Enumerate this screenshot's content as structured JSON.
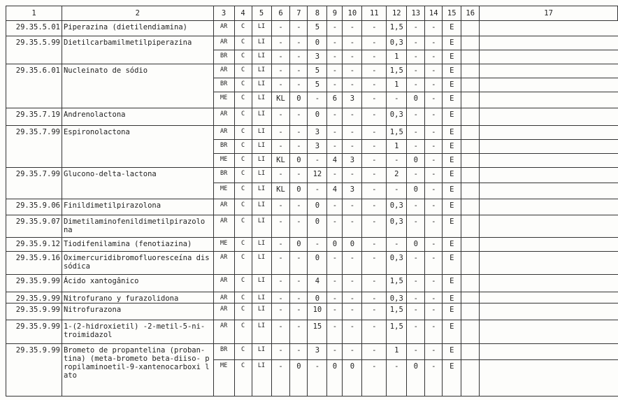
{
  "headers": [
    "1",
    "2",
    "3",
    "4",
    "5",
    "6",
    "7",
    "8",
    "9",
    "10",
    "11",
    "12",
    "13",
    "14",
    "15",
    "16",
    "17"
  ],
  "products": [
    {
      "code": "29.35.5.01",
      "name": "Piperazina (dietilendiamina)",
      "rows": [
        [
          "AR",
          "C",
          "LI",
          "-",
          "-",
          "5",
          "-",
          "-",
          "-",
          "1,5",
          "-",
          "-",
          "E"
        ]
      ]
    },
    {
      "code": "29.35.5.99",
      "name": "Dietilcarbamilmetilpiperazina",
      "rows": [
        [
          "AR",
          "C",
          "LI",
          "-",
          "-",
          "0",
          "-",
          "-",
          "-",
          "0,3",
          "-",
          "-",
          "E"
        ],
        [
          "BR",
          "C",
          "LI",
          "-",
          "-",
          "3",
          "-",
          "-",
          "-",
          "1",
          "-",
          "-",
          "E"
        ]
      ]
    },
    {
      "code": "29.35.6.01",
      "name": "Nucleinato de sódio",
      "rows": [
        [
          "AR",
          "C",
          "LI",
          "-",
          "-",
          "5",
          "-",
          "-",
          "-",
          "1,5",
          "-",
          "-",
          "E"
        ],
        [
          "BR",
          "C",
          "LI",
          "-",
          "-",
          "5",
          "-",
          "-",
          "-",
          "1",
          "-",
          "-",
          "E"
        ],
        [
          "ME",
          "C",
          "LI",
          "KL",
          "0",
          "-",
          "6",
          "3",
          "-",
          "-",
          "0",
          "-",
          "E"
        ]
      ]
    },
    {
      "code": "29.35.7.19",
      "name": "Andrenolactona",
      "rows": [
        [
          "AR",
          "C",
          "LI",
          "-",
          "-",
          "0",
          "-",
          "-",
          "-",
          "0,3",
          "-",
          "-",
          "E"
        ]
      ]
    },
    {
      "code": "29.35.7.99",
      "name": "Espironolactona",
      "rows": [
        [
          "AR",
          "C",
          "LI",
          "-",
          "-",
          "3",
          "-",
          "-",
          "-",
          "1,5",
          "-",
          "-",
          "E"
        ],
        [
          "BR",
          "C",
          "LI",
          "-",
          "-",
          "3",
          "-",
          "-",
          "-",
          "1",
          "-",
          "-",
          "E"
        ],
        [
          "ME",
          "C",
          "LI",
          "KL",
          "0",
          "-",
          "4",
          "3",
          "-",
          "-",
          "0",
          "-",
          "E"
        ]
      ]
    },
    {
      "code": "29.35.7.99",
      "name": "Glucono-delta-lactona",
      "rows": [
        [
          "BR",
          "C",
          "LI",
          "-",
          "-",
          "12",
          "-",
          "-",
          "-",
          "2",
          "-",
          "-",
          "E"
        ],
        [
          "ME",
          "C",
          "LI",
          "KL",
          "0",
          "-",
          "4",
          "3",
          "-",
          "-",
          "0",
          "-",
          "E"
        ]
      ]
    },
    {
      "code": "29.35.9.06",
      "name": "Finildimetilpirazolona",
      "rows": [
        [
          "AR",
          "C",
          "LI",
          "-",
          "-",
          "0",
          "-",
          "-",
          "-",
          "0,3",
          "-",
          "-",
          "E"
        ]
      ]
    },
    {
      "code": "29.35.9.07",
      "name": "Dimetilaminofenildimetilpirazolo na",
      "rows": [
        [
          "AR",
          "C",
          "LI",
          "-",
          "-",
          "0",
          "-",
          "-",
          "-",
          "0,3",
          "-",
          "-",
          "E"
        ]
      ]
    },
    {
      "code": "29.35.9.12",
      "name": "Tiodifenilamina (fenotiazina)",
      "rows": [
        [
          "ME",
          "C",
          "LI",
          "-",
          "0",
          "-",
          "0",
          "0",
          "-",
          "-",
          "0",
          "-",
          "E"
        ]
      ]
    },
    {
      "code": "29.35.9.16",
      "name": "Oximercuridibromofluoresceína dissódica",
      "rows": [
        [
          "AR",
          "C",
          "LI",
          "-",
          "-",
          "0",
          "-",
          "-",
          "-",
          "0,3",
          "-",
          "-",
          "E"
        ]
      ]
    },
    {
      "code": "29.35.9.99",
      "name": "Ácido xantogânico",
      "rows": [
        [
          "AR",
          "C",
          "LI",
          "-",
          "-",
          "4",
          "-",
          "-",
          "-",
          "1,5",
          "-",
          "-",
          "E"
        ]
      ]
    },
    {
      "code": "29.35.9.99",
      "name": "Nitrofurano y furazolidona",
      "rows": [
        [
          "AR",
          "C",
          "LI",
          "-",
          "-",
          "0",
          "-",
          "-",
          "-",
          "0,3",
          "-",
          "-",
          "E"
        ]
      ]
    },
    {
      "code": "29.35.9.99",
      "name": "Nitrofurazona",
      "rows": [
        [
          "AR",
          "C",
          "LI",
          "-",
          "-",
          "10",
          "-",
          "-",
          "-",
          "1,5",
          "-",
          "-",
          "E"
        ]
      ]
    },
    {
      "code": "29.35.9.99",
      "name": "1-(2-hidroxietil) -2-metil-5-ni- troimidazol",
      "rows": [
        [
          "AR",
          "C",
          "LI",
          "-",
          "-",
          "15",
          "-",
          "-",
          "-",
          "1,5",
          "-",
          "-",
          "E"
        ]
      ]
    },
    {
      "code": "29.35.9.99",
      "name": "Brometo de propantelina (proban- tina) (meta-brometo beta-diiso- propilaminoetil-9-xantenocarboxi lato",
      "rows": [
        [
          "BR",
          "C",
          "LI",
          "-",
          "-",
          "3",
          "-",
          "-",
          "-",
          "1",
          "-",
          "-",
          "E"
        ],
        [
          "ME",
          "C",
          "LI",
          "-",
          "0",
          "-",
          "0",
          "0",
          "-",
          "-",
          "0",
          "-",
          "E"
        ]
      ]
    }
  ]
}
